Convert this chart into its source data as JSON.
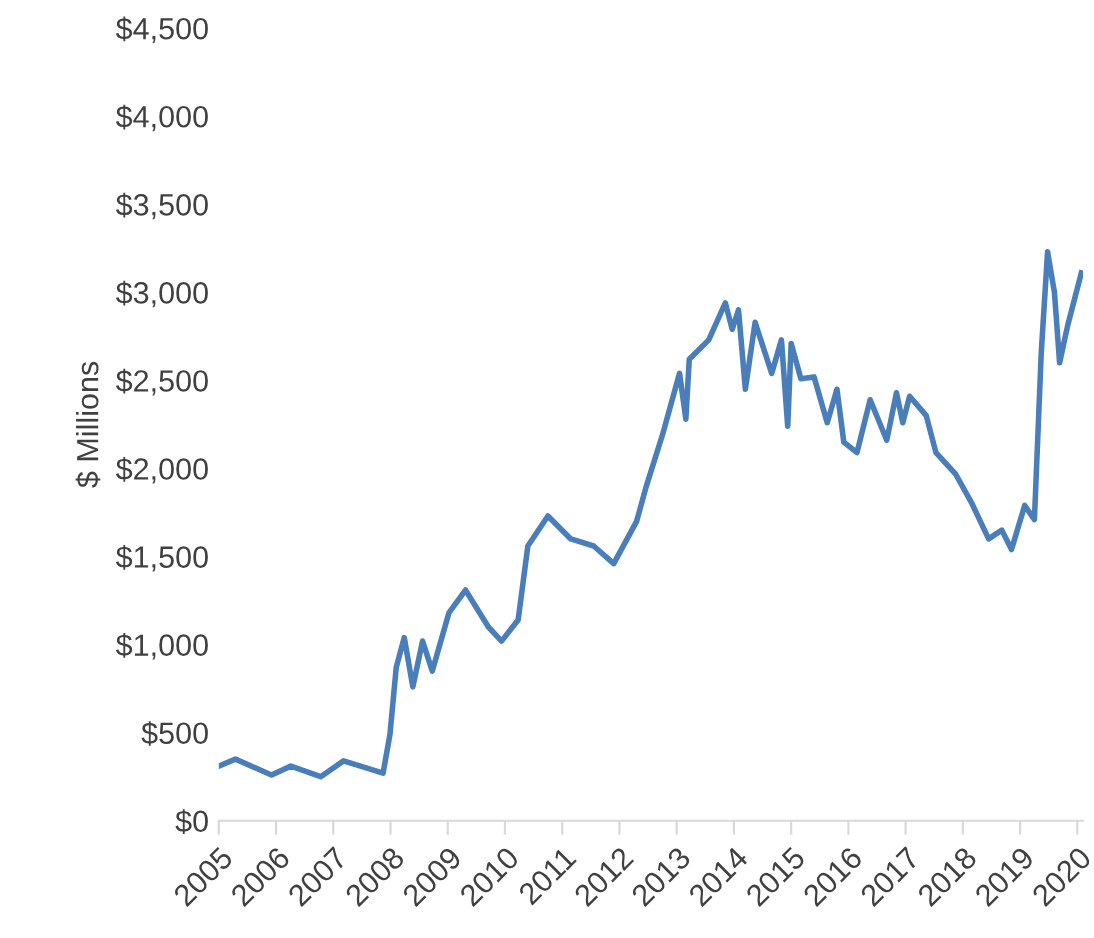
{
  "chart_data": {
    "type": "line",
    "ylabel": "$ Millions",
    "x": [
      2005.0,
      2005.29,
      2005.92,
      2006.26,
      2006.78,
      2007.18,
      2007.87,
      2007.99,
      2008.1,
      2008.24,
      2008.39,
      2008.56,
      2008.73,
      2009.02,
      2009.31,
      2009.71,
      2009.94,
      2010.23,
      2010.4,
      2010.75,
      2011.15,
      2011.55,
      2011.9,
      2012.3,
      2012.47,
      2012.76,
      2013.05,
      2013.16,
      2013.22,
      2013.56,
      2013.85,
      2013.97,
      2014.08,
      2014.2,
      2014.37,
      2014.66,
      2014.83,
      2014.94,
      2015.0,
      2015.17,
      2015.4,
      2015.63,
      2015.8,
      2015.92,
      2016.15,
      2016.38,
      2016.67,
      2016.84,
      2016.95,
      2017.07,
      2017.36,
      2017.53,
      2017.87,
      2018.16,
      2018.45,
      2018.68,
      2018.85,
      2019.08,
      2019.25,
      2019.37,
      2019.48,
      2019.6,
      2019.69,
      2019.83,
      2020.07
    ],
    "series": [
      {
        "color": "#4a7ebb",
        "values": [
          310,
          350,
          260,
          310,
          250,
          340,
          270,
          490,
          870,
          1040,
          760,
          1020,
          850,
          1180,
          1310,
          1100,
          1020,
          1140,
          1560,
          1730,
          1600,
          1560,
          1460,
          1700,
          1900,
          2200,
          2540,
          2280,
          2620,
          2730,
          2940,
          2790,
          2900,
          2450,
          2830,
          2540,
          2730,
          2240,
          2710,
          2510,
          2520,
          2260,
          2450,
          2150,
          2090,
          2390,
          2160,
          2430,
          2260,
          2410,
          2300,
          2090,
          1970,
          1800,
          1600,
          1650,
          1540,
          1790,
          1710,
          2660,
          3230,
          3000,
          2600,
          2810,
          3110
        ]
      }
    ],
    "xlim": [
      2005,
      2020.1
    ],
    "xticks": [
      2005,
      2006,
      2007,
      2008,
      2009,
      2010,
      2011,
      2012,
      2013,
      2014,
      2015,
      2016,
      2017,
      2018,
      2019,
      2020
    ],
    "ylim": [
      0,
      4500
    ],
    "yticks": [
      {
        "value": 0,
        "label": "$0"
      },
      {
        "value": 500,
        "label": "$500"
      },
      {
        "value": 1000,
        "label": "$1,000"
      },
      {
        "value": 1500,
        "label": "$1,500"
      },
      {
        "value": 2000,
        "label": "$2,000"
      },
      {
        "value": 2500,
        "label": "$2,500"
      },
      {
        "value": 3000,
        "label": "$3,000"
      },
      {
        "value": 3500,
        "label": "$3,500"
      },
      {
        "value": 4000,
        "label": "$4,000"
      },
      {
        "value": 4500,
        "label": "$4,500"
      }
    ],
    "grid": false,
    "legend": false
  }
}
